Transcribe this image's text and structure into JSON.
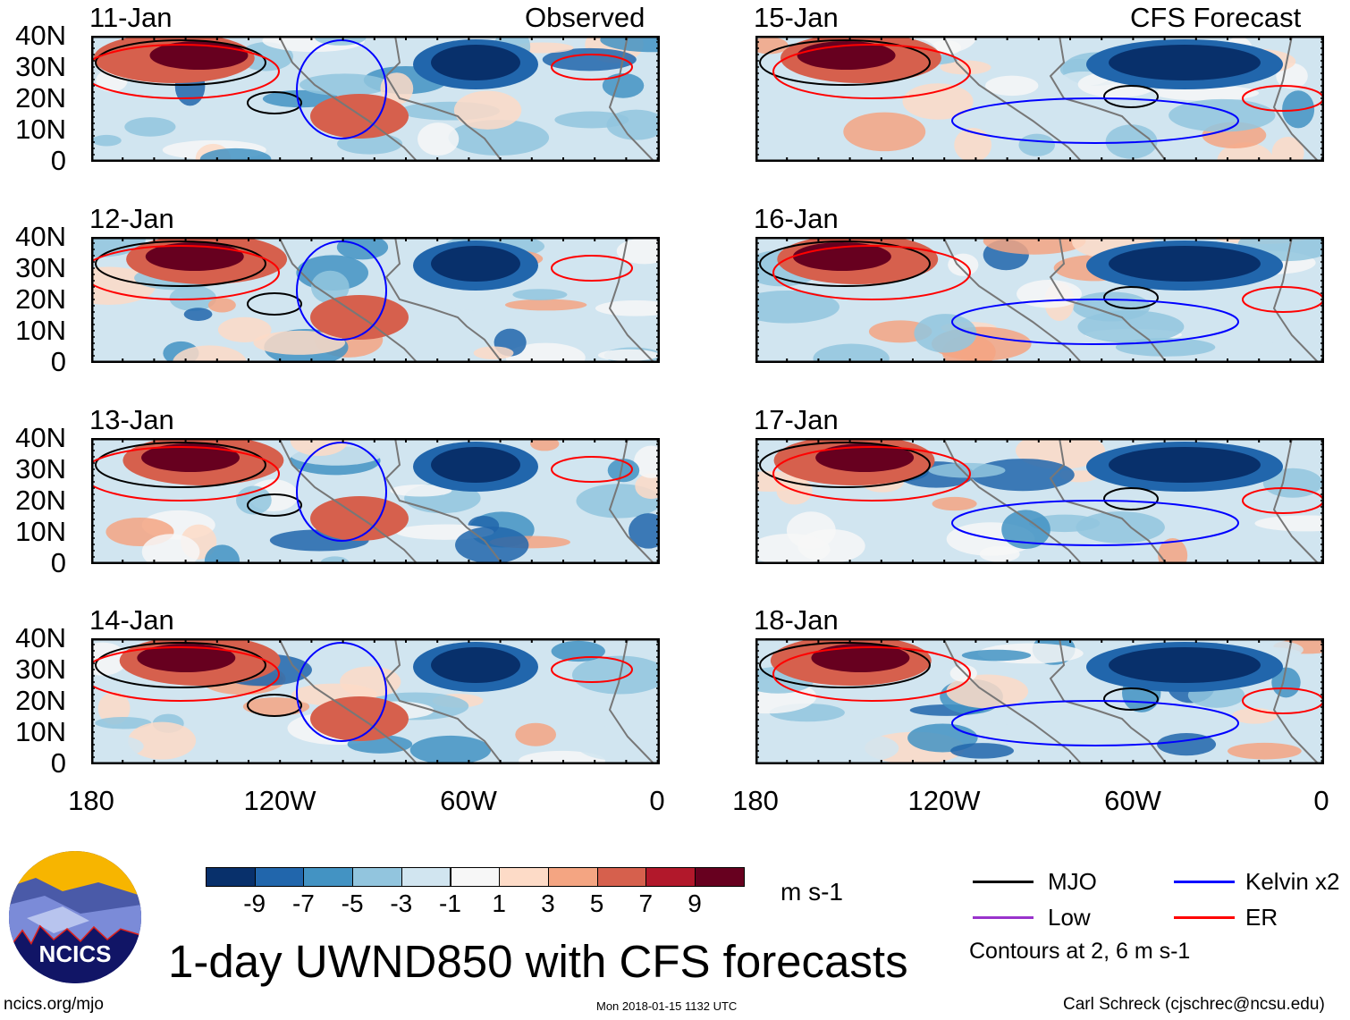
{
  "left_header": "Observed",
  "right_header": "CFS Forecast",
  "panels": [
    {
      "date": "11-Jan",
      "column": "observed"
    },
    {
      "date": "12-Jan",
      "column": "observed"
    },
    {
      "date": "13-Jan",
      "column": "observed"
    },
    {
      "date": "14-Jan",
      "column": "observed"
    },
    {
      "date": "15-Jan",
      "column": "forecast"
    },
    {
      "date": "16-Jan",
      "column": "forecast"
    },
    {
      "date": "17-Jan",
      "column": "forecast"
    },
    {
      "date": "18-Jan",
      "column": "forecast"
    }
  ],
  "lat_labels": [
    "40N",
    "30N",
    "20N",
    "10N",
    "0"
  ],
  "lon_labels": [
    "180",
    "120W",
    "60W",
    "0"
  ],
  "colorbar": {
    "colors": [
      "#08306b",
      "#2166ac",
      "#4393c3",
      "#92c5de",
      "#d1e5f0",
      "#f7f7f7",
      "#fddbc7",
      "#f4a582",
      "#d6604d",
      "#b2182b",
      "#67001f"
    ],
    "labels": [
      "-9",
      "-7",
      "-5",
      "-3",
      "-1",
      "1",
      "3",
      "5",
      "7",
      "9"
    ],
    "units": "m s-1"
  },
  "legend": {
    "items": [
      {
        "label": "MJO",
        "color": "#000000"
      },
      {
        "label": "Kelvin x2",
        "color": "#0000ff"
      },
      {
        "label": "Low",
        "color": "#9933cc"
      },
      {
        "label": "ER",
        "color": "#ff0000"
      }
    ],
    "note": "Contours at 2, 6 m s-1"
  },
  "title": "1-day UWND850 with CFS forecasts",
  "logo_text": "NCICS",
  "footer": {
    "url": "ncics.org/mjo",
    "timestamp": "Mon 2018-01-15 1132 UTC",
    "author": "Carl Schreck (cjschrec@ncsu.edu)"
  }
}
